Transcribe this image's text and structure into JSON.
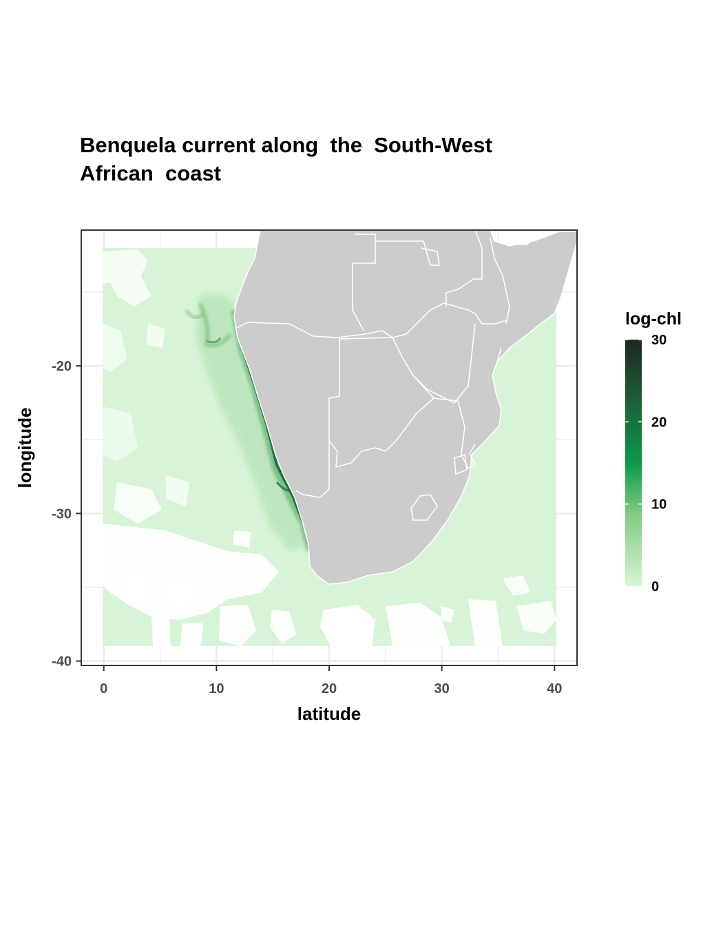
{
  "title": {
    "line1": "Benquela current along  the  South-West",
    "line2": "African  coast"
  },
  "x_axis": {
    "label": "latitude",
    "ticks": [
      0,
      10,
      20,
      30,
      40
    ],
    "range": [
      -2,
      42
    ]
  },
  "y_axis": {
    "label": "longitude",
    "ticks": [
      -20,
      -30,
      -40
    ],
    "range": [
      -40.3,
      -10.8
    ]
  },
  "legend": {
    "title": "log-chl",
    "ticks": [
      0,
      10,
      20,
      30
    ],
    "range": [
      0,
      30
    ],
    "colors": [
      "#d7f5d6",
      "#6cc06e",
      "#0a9a4a",
      "#1e5f36",
      "#1c2a1f"
    ],
    "position": "right"
  },
  "colors": {
    "land": "#cccccc",
    "borders": "#ffffff",
    "ocean_low": "#d7f5d6",
    "upwelling_high": "#0f6a34",
    "grid": "#ebebeb",
    "panel_border": "#333333"
  },
  "chart_data": {
    "type": "heatmap",
    "title": "Benquela current along  the  South-West\nAfrican  coast",
    "xlabel": "latitude",
    "ylabel": "longitude",
    "xlim": [
      -2,
      42
    ],
    "ylim": [
      -40.3,
      -10.8
    ],
    "xticks": [
      0,
      10,
      20,
      30,
      40
    ],
    "yticks": [
      -20,
      -30,
      -40
    ],
    "data_extent": {
      "x": [
        0,
        40
      ],
      "y": [
        -38.8,
        -12.2
      ]
    },
    "fill_variable": "log-chl",
    "fill_range": [
      0,
      30
    ],
    "land_color": "#cccccc",
    "grid": true,
    "legend": "right"
  }
}
